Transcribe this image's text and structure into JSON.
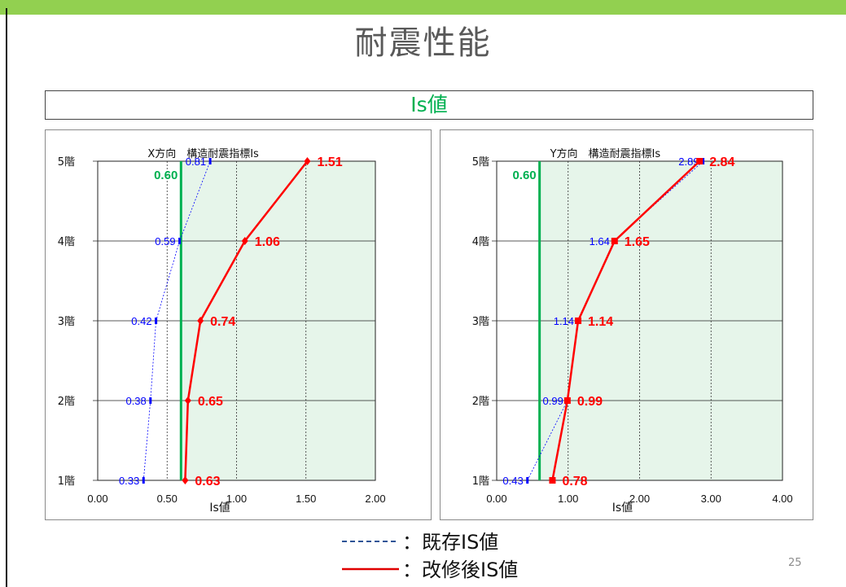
{
  "title": "耐震性能",
  "banner": "Is値",
  "page_number": "25",
  "colors": {
    "accent": "#92d050",
    "existing": "#0000ff",
    "retrofit": "#ff0000",
    "threshold": "#00b050",
    "zone_fill": "#e6f5ea"
  },
  "legend": {
    "existing_label": "：既存IS値",
    "retrofit_label": "：改修後IS値"
  },
  "chart_data": [
    {
      "type": "line",
      "title": "X方向　構造耐震指標Is",
      "xlabel": "Is値",
      "ylabel": "",
      "categories": [
        "1階",
        "2階",
        "3階",
        "4階",
        "5階"
      ],
      "xlim": [
        0,
        2
      ],
      "xticks": [
        0,
        0.5,
        1,
        1.5,
        2
      ],
      "xtick_labels": [
        "0.00",
        "0.50",
        "1.00",
        "1.50",
        "2.00"
      ],
      "threshold": {
        "value": 0.6,
        "label": "0.60"
      },
      "shaded_from": 0.6,
      "series": [
        {
          "key": "existing",
          "values": [
            0.33,
            0.38,
            0.42,
            0.59,
            0.81
          ],
          "labels": [
            "0.33",
            "0.38",
            "0.42",
            "0.59",
            "0.81"
          ]
        },
        {
          "key": "retrofit",
          "values": [
            0.63,
            0.65,
            0.74,
            1.06,
            1.51
          ],
          "labels": [
            "0.63",
            "0.65",
            "0.74",
            "1.06",
            "1.51"
          ]
        }
      ],
      "grid": true
    },
    {
      "type": "line",
      "title": "Y方向　構造耐震指標Is",
      "xlabel": "Is値",
      "ylabel": "",
      "categories": [
        "1階",
        "2階",
        "3階",
        "4階",
        "5階"
      ],
      "xlim": [
        0,
        4
      ],
      "xticks": [
        0,
        1,
        2,
        3,
        4
      ],
      "xtick_labels": [
        "0.00",
        "1.00",
        "2.00",
        "3.00",
        "4.00"
      ],
      "threshold": {
        "value": 0.6,
        "label": "0.60"
      },
      "shaded_from": 0.6,
      "series": [
        {
          "key": "existing",
          "values": [
            0.43,
            0.99,
            1.14,
            1.64,
            2.89
          ],
          "labels": [
            "0.43",
            "0.99",
            "1.14",
            "1.64",
            "2.89"
          ]
        },
        {
          "key": "retrofit",
          "values": [
            0.78,
            0.99,
            1.14,
            1.65,
            2.84
          ],
          "labels": [
            "0.78",
            "0.99",
            "1.14",
            "1.65",
            "2.84"
          ]
        }
      ],
      "grid": true
    }
  ]
}
